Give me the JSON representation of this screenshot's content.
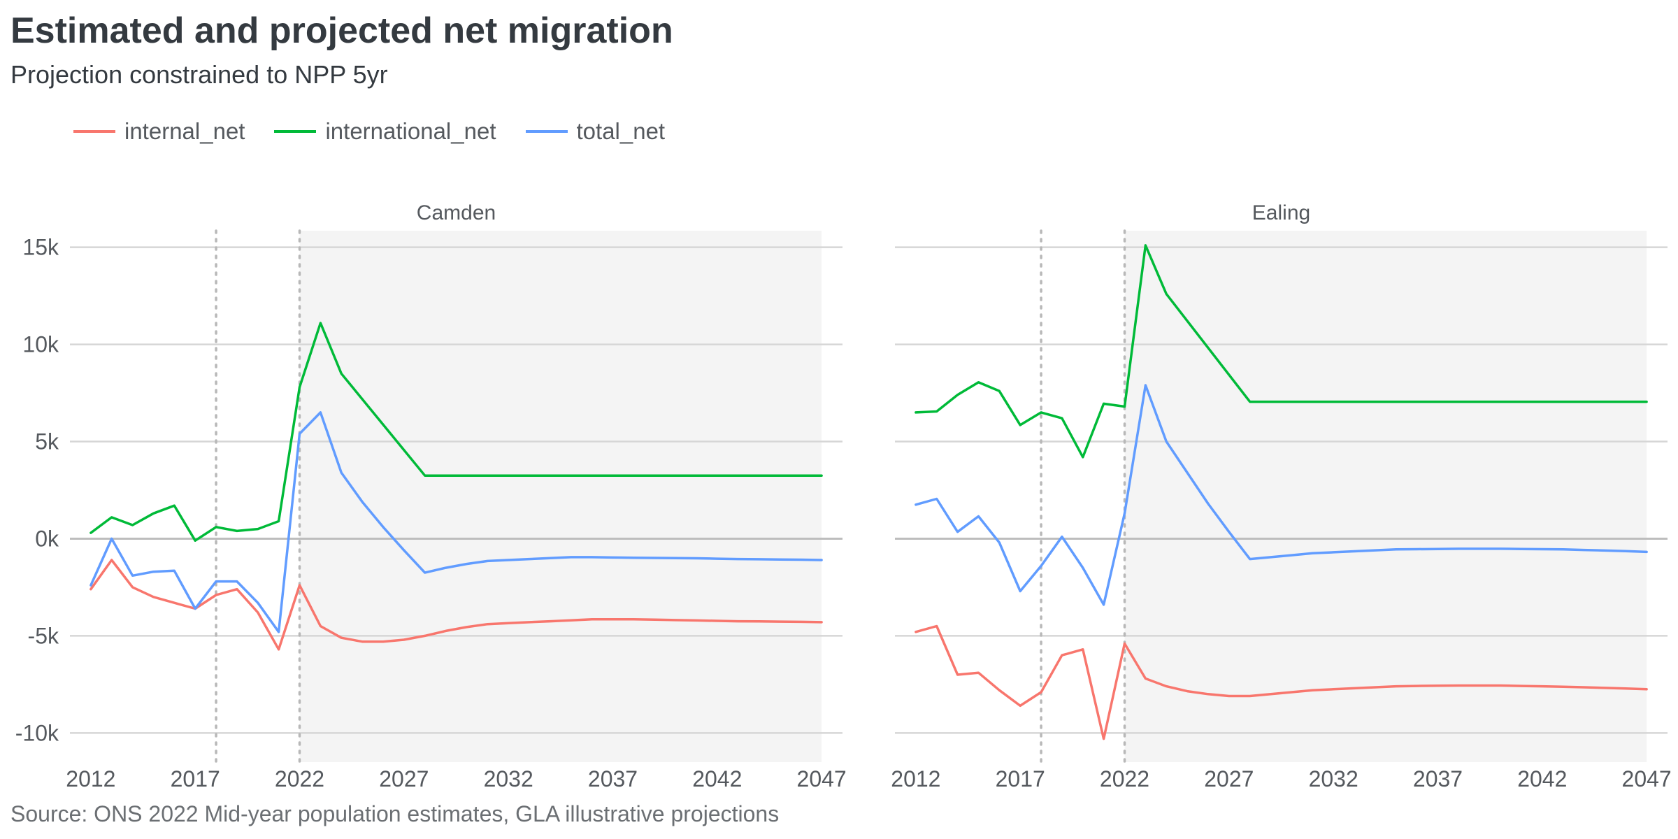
{
  "title": "Estimated and projected net migration",
  "subtitle": "Projection constrained to NPP 5yr",
  "caption": "Source: ONS 2022 Mid-year population estimates, GLA illustrative projections",
  "chart_data": {
    "type": "line",
    "facets": [
      "Camden",
      "Ealing"
    ],
    "x_ticks": [
      2012,
      2017,
      2022,
      2027,
      2032,
      2037,
      2042,
      2047
    ],
    "y_ticks": [
      15000,
      10000,
      5000,
      0,
      -5000,
      -10000
    ],
    "y_tick_labels": [
      "15k",
      "10k",
      "5k",
      "0k",
      "-5k",
      "-10k"
    ],
    "xlim": [
      2011,
      2048
    ],
    "ylim": [
      -11500,
      16500
    ],
    "projection_shading_start": 2022,
    "projection_shading_end": 2047,
    "vertical_reference_lines": [
      2018,
      2022
    ],
    "legend_position": "top-left",
    "grid": "horizontal",
    "series_styles": [
      {
        "name": "internal_net",
        "color": "#F8766D"
      },
      {
        "name": "international_net",
        "color": "#00BA38"
      },
      {
        "name": "total_net",
        "color": "#619CFF"
      }
    ],
    "panels": [
      {
        "name": "Camden",
        "series": [
          {
            "name": "internal_net",
            "x": [
              2012,
              2013,
              2014,
              2015,
              2016,
              2017,
              2018,
              2019,
              2020,
              2021,
              2022,
              2023,
              2024,
              2025,
              2026,
              2027,
              2028,
              2029,
              2030,
              2031,
              2032,
              2033,
              2034,
              2035,
              2036,
              2037,
              2038,
              2039,
              2040,
              2041,
              2042,
              2043,
              2044,
              2045,
              2046,
              2047
            ],
            "y": [
              -2600,
              -1100,
              -2500,
              -3000,
              -3300,
              -3600,
              -2900,
              -2600,
              -3800,
              -5700,
              -2400,
              -4500,
              -5100,
              -5300,
              -5300,
              -5200,
              -5000,
              -4750,
              -4550,
              -4400,
              -4350,
              -4300,
              -4250,
              -4200,
              -4150,
              -4150,
              -4150,
              -4170,
              -4190,
              -4210,
              -4230,
              -4250,
              -4260,
              -4270,
              -4280,
              -4300
            ]
          },
          {
            "name": "international_net",
            "x": [
              2012,
              2013,
              2014,
              2015,
              2016,
              2017,
              2018,
              2019,
              2020,
              2021,
              2022,
              2023,
              2024,
              2028,
              2047
            ],
            "y": [
              300,
              1100,
              700,
              1300,
              1700,
              -100,
              600,
              400,
              500,
              900,
              7800,
              11100,
              8500,
              3250,
              3250
            ]
          },
          {
            "name": "total_net",
            "x": [
              2012,
              2013,
              2014,
              2015,
              2016,
              2017,
              2018,
              2019,
              2020,
              2021,
              2022,
              2023,
              2024,
              2025,
              2026,
              2027,
              2028,
              2029,
              2030,
              2031,
              2032,
              2033,
              2034,
              2035,
              2036,
              2037,
              2038,
              2039,
              2040,
              2041,
              2042,
              2043,
              2044,
              2045,
              2046,
              2047
            ],
            "y": [
              -2400,
              0,
              -1900,
              -1700,
              -1650,
              -3600,
              -2200,
              -2200,
              -3300,
              -4800,
              5400,
              6500,
              3400,
              1900,
              600,
              -600,
              -1750,
              -1500,
              -1300,
              -1150,
              -1100,
              -1050,
              -1000,
              -950,
              -950,
              -970,
              -980,
              -990,
              -1000,
              -1010,
              -1030,
              -1050,
              -1060,
              -1070,
              -1080,
              -1100
            ]
          }
        ]
      },
      {
        "name": "Ealing",
        "series": [
          {
            "name": "internal_net",
            "x": [
              2012,
              2013,
              2014,
              2015,
              2016,
              2017,
              2018,
              2019,
              2020,
              2021,
              2022,
              2023,
              2024,
              2025,
              2026,
              2027,
              2028,
              2029,
              2030,
              2031,
              2032,
              2033,
              2034,
              2035,
              2036,
              2037,
              2038,
              2039,
              2040,
              2041,
              2042,
              2043,
              2044,
              2045,
              2046,
              2047
            ],
            "y": [
              -4800,
              -4500,
              -7000,
              -6900,
              -7800,
              -8600,
              -7900,
              -6000,
              -5700,
              -10300,
              -5400,
              -7200,
              -7600,
              -7850,
              -8000,
              -8100,
              -8100,
              -8000,
              -7900,
              -7800,
              -7750,
              -7700,
              -7650,
              -7600,
              -7580,
              -7570,
              -7560,
              -7560,
              -7560,
              -7580,
              -7600,
              -7620,
              -7650,
              -7680,
              -7710,
              -7750
            ]
          },
          {
            "name": "international_net",
            "x": [
              2012,
              2013,
              2014,
              2015,
              2016,
              2017,
              2018,
              2019,
              2020,
              2021,
              2022,
              2023,
              2024,
              2028,
              2047
            ],
            "y": [
              6500,
              6550,
              7400,
              8050,
              7600,
              5850,
              6500,
              6200,
              4200,
              6950,
              6800,
              15100,
              12600,
              7050,
              7050
            ]
          },
          {
            "name": "total_net",
            "x": [
              2012,
              2013,
              2014,
              2015,
              2016,
              2017,
              2018,
              2019,
              2020,
              2021,
              2022,
              2023,
              2024,
              2025,
              2026,
              2027,
              2028,
              2029,
              2030,
              2031,
              2032,
              2033,
              2034,
              2035,
              2036,
              2037,
              2038,
              2039,
              2040,
              2041,
              2042,
              2043,
              2044,
              2045,
              2046,
              2047
            ],
            "y": [
              1750,
              2050,
              350,
              1150,
              -200,
              -2700,
              -1400,
              100,
              -1500,
              -3400,
              1300,
              7900,
              5000,
              3400,
              1800,
              350,
              -1050,
              -950,
              -850,
              -750,
              -700,
              -650,
              -600,
              -550,
              -540,
              -530,
              -520,
              -520,
              -520,
              -530,
              -540,
              -550,
              -580,
              -610,
              -640,
              -680
            ]
          }
        ]
      }
    ]
  }
}
